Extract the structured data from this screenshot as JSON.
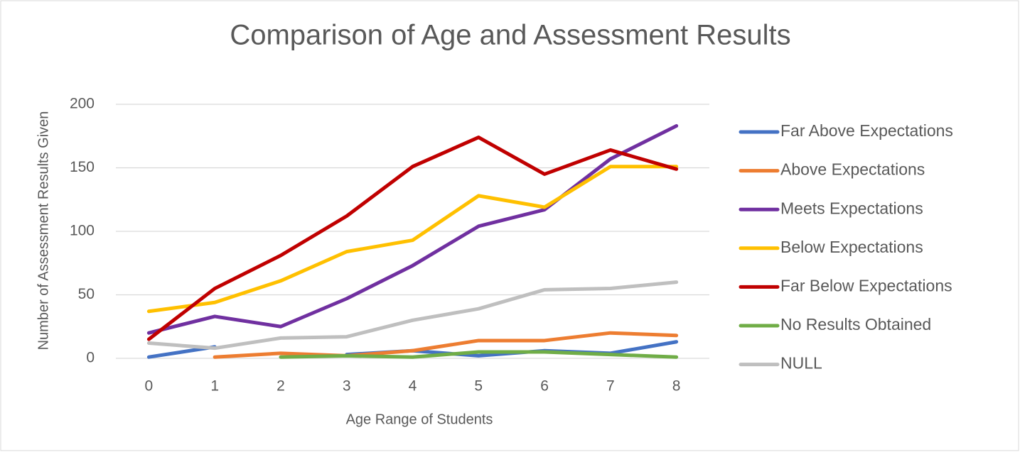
{
  "chart_data": {
    "type": "line",
    "title": "Comparison of Age and Assessment Results",
    "x_label": "Age Range of Students",
    "y_label": "Number of Assessment Results Given",
    "categories": [
      "0",
      "1",
      "2",
      "3",
      "4",
      "5",
      "6",
      "7",
      "8"
    ],
    "ylim": [
      0,
      200
    ],
    "yticks": [
      0,
      50,
      100,
      150,
      200
    ],
    "grid": true,
    "legend": "right",
    "series": [
      {
        "name": "Far Above Expectations",
        "color": "#4472c4",
        "values": [
          1,
          9,
          null,
          3,
          6,
          2,
          6,
          4,
          13
        ]
      },
      {
        "name": "Above Expectations",
        "color": "#ed7d31",
        "values": [
          null,
          1,
          4,
          2,
          6,
          14,
          14,
          20,
          18
        ]
      },
      {
        "name": "Meets Expectations",
        "color": "#7030a0",
        "values": [
          20,
          33,
          25,
          47,
          73,
          104,
          117,
          157,
          183
        ]
      },
      {
        "name": "Below Expectations",
        "color": "#ffc000",
        "values": [
          37,
          44,
          61,
          84,
          93,
          128,
          119,
          151,
          151
        ]
      },
      {
        "name": "Far Below Expectations",
        "color": "#c00000",
        "values": [
          15,
          55,
          81,
          112,
          151,
          174,
          145,
          164,
          149
        ]
      },
      {
        "name": "No Results Obtained",
        "color": "#70ad47",
        "values": [
          null,
          null,
          1,
          2,
          1,
          5,
          5,
          3,
          1
        ]
      },
      {
        "name": "NULL",
        "color": "#bfbfbf",
        "values": [
          12,
          8,
          16,
          17,
          30,
          39,
          54,
          55,
          60
        ]
      }
    ]
  }
}
